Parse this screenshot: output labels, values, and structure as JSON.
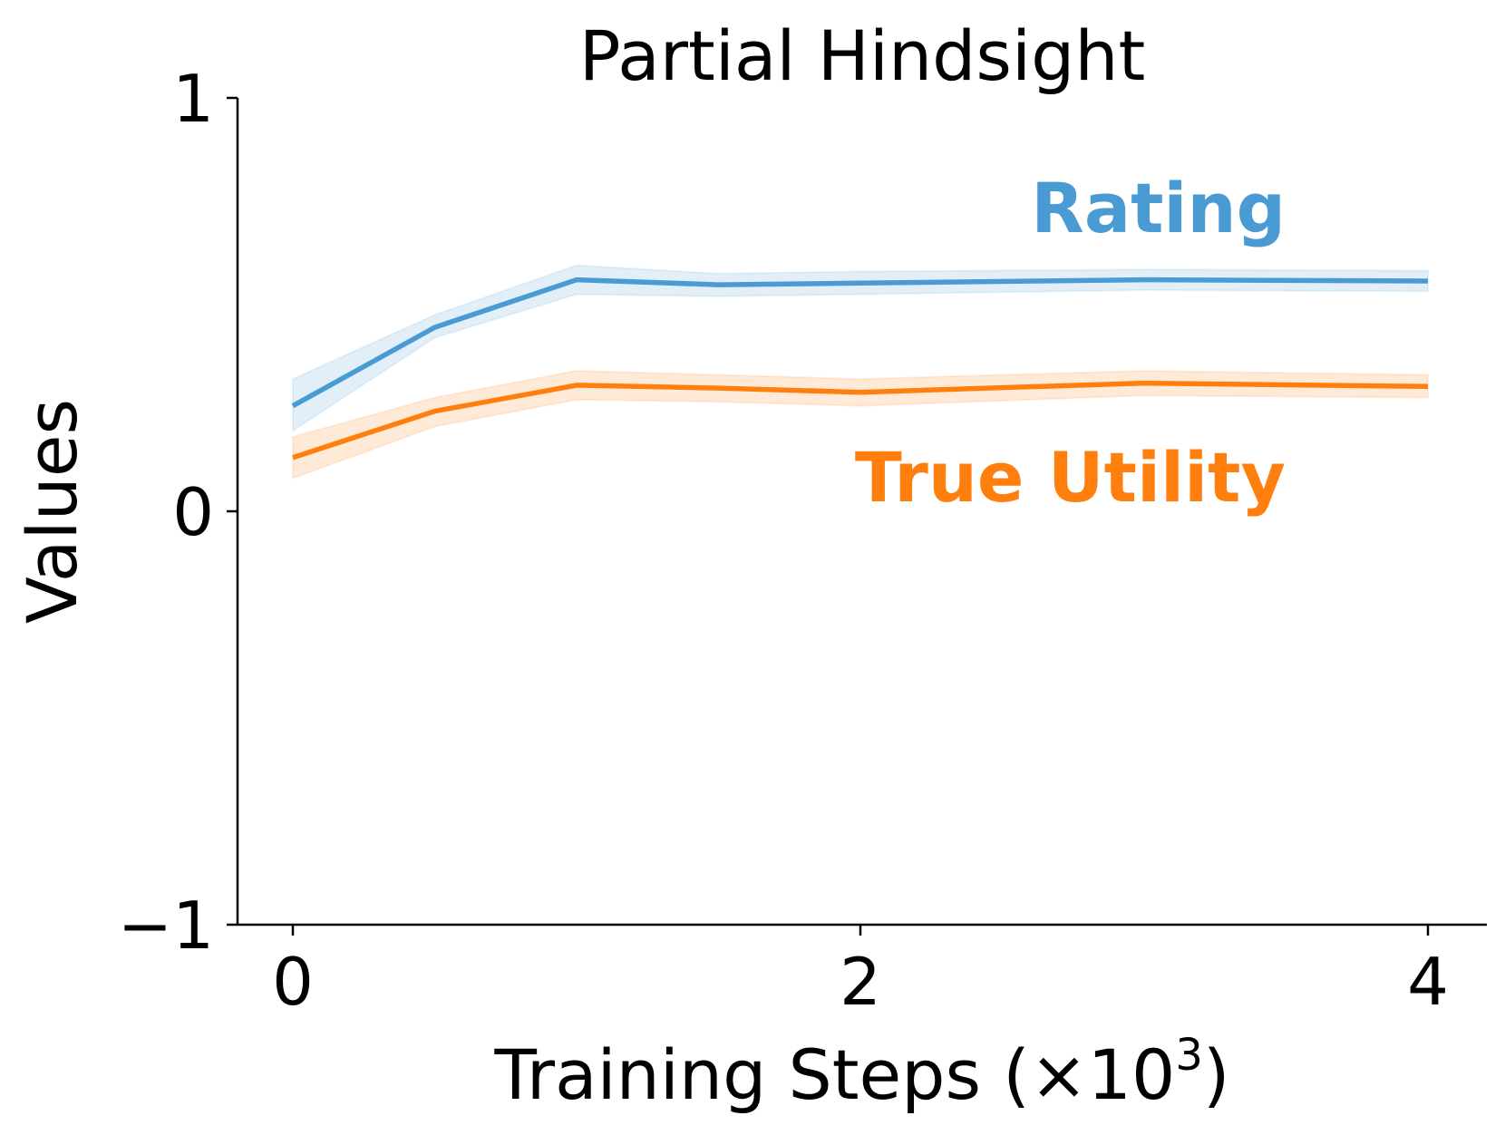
{
  "chart_data": {
    "type": "line",
    "title": "Partial Hindsight",
    "xlabel": "Training Steps (×10",
    "xlabel_sup": "3",
    "xlabel_close": ")",
    "ylabel": "Values",
    "xlim": [
      -0.1,
      4.1
    ],
    "ylim": [
      -1,
      1
    ],
    "xticks": [
      0,
      2,
      4
    ],
    "xtick_labels": [
      "0",
      "2",
      "4"
    ],
    "yticks": [
      -1,
      0,
      1
    ],
    "ytick_labels": [
      "−1",
      "0",
      "1"
    ],
    "grid": false,
    "legend": "inline labels",
    "x": [
      0,
      0.5,
      1,
      1.5,
      2,
      3,
      4
    ],
    "series": [
      {
        "name": "Rating",
        "color": "#4a9bd4",
        "values": [
          0.255,
          0.445,
          0.56,
          0.548,
          0.552,
          0.56,
          0.557
        ],
        "lower": [
          0.195,
          0.42,
          0.525,
          0.52,
          0.525,
          0.535,
          0.532
        ],
        "upper": [
          0.32,
          0.475,
          0.595,
          0.575,
          0.58,
          0.585,
          0.582
        ]
      },
      {
        "name": "True Utility",
        "color": "#ff7f0e",
        "values": [
          0.13,
          0.242,
          0.305,
          0.298,
          0.288,
          0.31,
          0.302
        ],
        "lower": [
          0.08,
          0.205,
          0.27,
          0.265,
          0.255,
          0.28,
          0.275
        ],
        "upper": [
          0.18,
          0.275,
          0.34,
          0.33,
          0.32,
          0.34,
          0.33
        ]
      }
    ]
  }
}
